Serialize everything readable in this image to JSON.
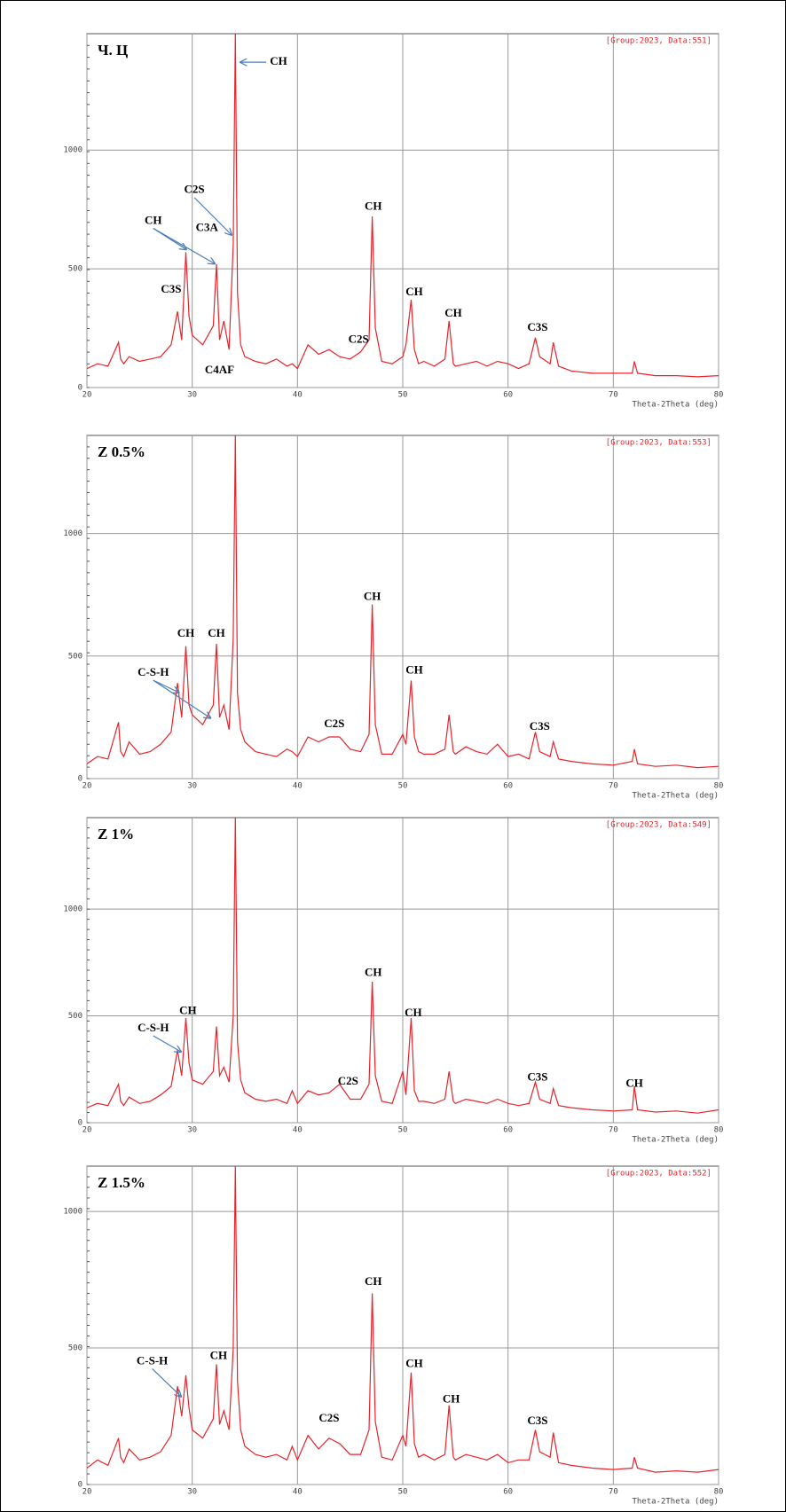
{
  "chart_data": [
    {
      "type": "line",
      "title": "Ч. Ц",
      "subtitle": "[Group:2023, Data:551]",
      "x_label": "Theta-2Theta (deg)",
      "x": [
        20,
        21,
        22,
        23,
        23.2,
        23.5,
        24,
        25,
        26,
        27,
        28,
        28.6,
        29,
        29.4,
        29.7,
        30,
        31,
        32,
        32.3,
        32.6,
        33,
        33.5,
        33.9,
        34.1,
        34.3,
        34.6,
        35,
        36,
        37,
        38,
        39,
        39.5,
        40,
        41,
        42,
        43,
        44,
        45,
        46,
        46.8,
        47.1,
        47.4,
        48,
        49,
        50,
        50.3,
        50.8,
        51.1,
        51.5,
        52,
        53,
        54,
        54.4,
        54.8,
        55,
        56,
        57,
        58,
        59,
        60,
        61,
        62,
        62.6,
        63,
        64,
        64.3,
        64.8,
        66,
        68,
        70,
        71.8,
        72,
        72.3,
        74,
        76,
        78,
        80
      ],
      "values": [
        80,
        100,
        90,
        190,
        120,
        100,
        130,
        110,
        120,
        130,
        180,
        320,
        200,
        570,
        300,
        220,
        180,
        260,
        520,
        200,
        280,
        160,
        600,
        1490,
        400,
        180,
        130,
        110,
        100,
        120,
        90,
        100,
        80,
        180,
        140,
        160,
        130,
        120,
        150,
        200,
        720,
        250,
        110,
        100,
        130,
        180,
        370,
        160,
        100,
        110,
        90,
        120,
        280,
        100,
        90,
        100,
        110,
        90,
        110,
        100,
        80,
        100,
        210,
        130,
        100,
        190,
        90,
        70,
        60,
        60,
        60,
        110,
        60,
        50,
        50,
        45,
        50
      ],
      "color": "#e8232b",
      "xlim": [
        20,
        80
      ],
      "ylim": [
        0,
        1490
      ],
      "xticks": [
        20,
        30,
        40,
        50,
        60,
        70,
        80
      ],
      "yticks": [
        0,
        500,
        1000
      ],
      "grid": true,
      "annotations": [
        "CH",
        "C2S",
        "CH",
        "C3A",
        "C3S",
        "C4AF",
        "C2S",
        "CH",
        "CH",
        "CH",
        "C3S"
      ]
    },
    {
      "type": "line",
      "title": "Z 0.5%",
      "subtitle": "[Group:2023, Data:553]",
      "x_label": "Theta-2Theta (deg)",
      "x": [
        20,
        21,
        22,
        23,
        23.2,
        23.5,
        24,
        25,
        26,
        27,
        28,
        28.6,
        29,
        29.4,
        29.7,
        30,
        31,
        32,
        32.3,
        32.6,
        33,
        33.5,
        33.9,
        34.1,
        34.3,
        34.6,
        35,
        36,
        37,
        38,
        39,
        39.5,
        40,
        41,
        42,
        43,
        44,
        45,
        46,
        46.8,
        47.1,
        47.4,
        48,
        49,
        50,
        50.3,
        50.8,
        51.1,
        51.5,
        52,
        53,
        54,
        54.4,
        54.8,
        55,
        56,
        57,
        58,
        59,
        60,
        61,
        62,
        62.6,
        63,
        64,
        64.3,
        64.8,
        66,
        68,
        70,
        71.8,
        72,
        72.3,
        74,
        76,
        78,
        80
      ],
      "values": [
        60,
        90,
        80,
        230,
        110,
        90,
        150,
        100,
        110,
        140,
        190,
        390,
        250,
        540,
        300,
        260,
        220,
        300,
        550,
        250,
        300,
        200,
        570,
        1400,
        350,
        200,
        150,
        110,
        100,
        90,
        120,
        110,
        90,
        170,
        150,
        170,
        170,
        120,
        110,
        180,
        710,
        220,
        100,
        100,
        180,
        140,
        400,
        170,
        110,
        100,
        100,
        120,
        260,
        110,
        100,
        130,
        110,
        100,
        140,
        90,
        100,
        80,
        190,
        110,
        90,
        150,
        80,
        70,
        60,
        55,
        70,
        120,
        60,
        50,
        55,
        45,
        50
      ],
      "color": "#e8232b",
      "xlim": [
        20,
        80
      ],
      "ylim": [
        0,
        1400
      ],
      "xticks": [
        20,
        30,
        40,
        50,
        60,
        70,
        80
      ],
      "yticks": [
        0,
        500,
        1000
      ],
      "grid": true,
      "annotations": [
        "CH",
        "CH",
        "C-S-H",
        "C2S",
        "CH",
        "CH",
        "C3S"
      ]
    },
    {
      "type": "line",
      "title": "Z 1%",
      "subtitle": "[Group:2023, Data:549]",
      "x_label": "Theta-2Theta (deg)",
      "x": [
        20,
        21,
        22,
        23,
        23.2,
        23.5,
        24,
        25,
        26,
        27,
        28,
        28.6,
        29,
        29.4,
        29.7,
        30,
        31,
        32,
        32.3,
        32.6,
        33,
        33.5,
        33.9,
        34.1,
        34.3,
        34.6,
        35,
        36,
        37,
        38,
        39,
        39.5,
        40,
        41,
        42,
        43,
        44,
        45,
        46,
        46.8,
        47.1,
        47.4,
        48,
        49,
        50,
        50.3,
        50.8,
        51.1,
        51.5,
        52,
        53,
        54,
        54.4,
        54.8,
        55,
        56,
        57,
        58,
        59,
        60,
        61,
        62,
        62.6,
        63,
        64,
        64.3,
        64.8,
        66,
        68,
        70,
        71.8,
        72,
        72.3,
        74,
        76,
        78,
        80
      ],
      "values": [
        70,
        90,
        80,
        180,
        100,
        80,
        120,
        90,
        100,
        130,
        170,
        340,
        220,
        490,
        280,
        200,
        180,
        240,
        450,
        220,
        260,
        190,
        500,
        1428,
        380,
        200,
        140,
        110,
        100,
        110,
        90,
        150,
        90,
        150,
        130,
        140,
        180,
        110,
        110,
        180,
        660,
        220,
        100,
        90,
        240,
        130,
        490,
        150,
        100,
        100,
        90,
        110,
        240,
        100,
        90,
        110,
        100,
        90,
        110,
        90,
        80,
        90,
        190,
        110,
        90,
        160,
        80,
        70,
        60,
        55,
        60,
        170,
        60,
        50,
        55,
        45,
        60
      ],
      "color": "#e8232b",
      "xlim": [
        20,
        80
      ],
      "ylim": [
        0,
        1428
      ],
      "xticks": [
        20,
        30,
        40,
        50,
        60,
        70,
        80
      ],
      "yticks": [
        0,
        500,
        1000
      ],
      "grid": true,
      "annotations": [
        "CH",
        "C-S-H",
        "C2S",
        "CH",
        "CH",
        "C3S",
        "CH"
      ]
    },
    {
      "type": "line",
      "title": "Z 1.5%",
      "subtitle": "[Group:2023, Data:552]",
      "x_label": "Theta-2Theta (deg)",
      "x": [
        20,
        21,
        22,
        23,
        23.2,
        23.5,
        24,
        25,
        26,
        27,
        28,
        28.6,
        29,
        29.4,
        29.7,
        30,
        31,
        32,
        32.3,
        32.6,
        33,
        33.5,
        33.9,
        34.1,
        34.3,
        34.6,
        35,
        36,
        37,
        38,
        39,
        39.5,
        40,
        41,
        42,
        43,
        44,
        45,
        46,
        46.8,
        47.1,
        47.4,
        48,
        49,
        50,
        50.3,
        50.8,
        51.1,
        51.5,
        52,
        53,
        54,
        54.4,
        54.8,
        55,
        56,
        57,
        58,
        59,
        60,
        61,
        62,
        62.6,
        63,
        64,
        64.3,
        64.8,
        66,
        68,
        70,
        71.8,
        72,
        72.3,
        74,
        76,
        78,
        80
      ],
      "values": [
        60,
        90,
        70,
        170,
        100,
        80,
        130,
        90,
        100,
        120,
        180,
        360,
        250,
        400,
        280,
        200,
        170,
        240,
        440,
        220,
        270,
        200,
        500,
        1166,
        380,
        200,
        140,
        110,
        100,
        110,
        90,
        140,
        90,
        180,
        130,
        170,
        150,
        110,
        110,
        200,
        700,
        230,
        100,
        90,
        180,
        140,
        410,
        150,
        100,
        110,
        90,
        110,
        290,
        100,
        90,
        110,
        100,
        90,
        110,
        80,
        90,
        90,
        200,
        120,
        100,
        190,
        80,
        70,
        60,
        55,
        60,
        100,
        60,
        45,
        50,
        45,
        55
      ],
      "color": "#e8232b",
      "xlim": [
        20,
        80
      ],
      "ylim": [
        0,
        1166
      ],
      "xticks": [
        20,
        30,
        40,
        50,
        60,
        70,
        80
      ],
      "yticks": [
        0,
        500,
        1000
      ],
      "grid": true,
      "annotations": [
        "C-S-H",
        "CH",
        "C2S",
        "CH",
        "CH",
        "CH",
        "C3S"
      ]
    }
  ]
}
